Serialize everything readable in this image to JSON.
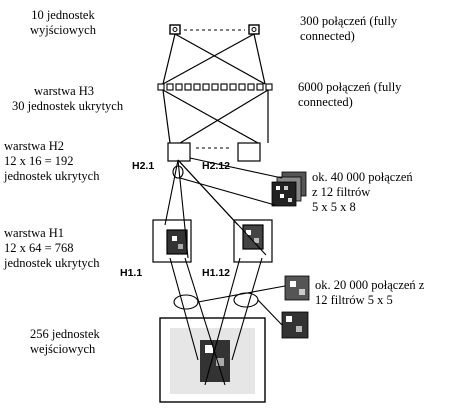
{
  "labels": {
    "output_units": [
      "10 jednostek",
      "wyjściowych"
    ],
    "output_conn": [
      "300 połączeń (fully",
      "connected)"
    ],
    "h3": [
      "warstwa H3",
      "30 jednostek ukrytych"
    ],
    "h3_conn": [
      "6000 połączeń (fully",
      "connected)"
    ],
    "h2": [
      "warstwa H2",
      "12 x 16 = 192",
      "jednostek ukrytych"
    ],
    "h2_conn": [
      "ok. 40 000 połączeń",
      "z 12 filtrów",
      "5 x 5 x 8"
    ],
    "h1": [
      "warstwa H1",
      "12 x 64 = 768",
      "jednostek ukrytych"
    ],
    "h1_conn": [
      "ok. 20 000 połączeń z",
      "12 filtrów 5 x 5"
    ],
    "input": [
      "256 jednostek",
      "wejściowych"
    ],
    "map_h2_1": "H2.1",
    "map_h2_12": "H2.12",
    "map_h1_1": "H1.1",
    "map_h1_12": "H1.12"
  }
}
